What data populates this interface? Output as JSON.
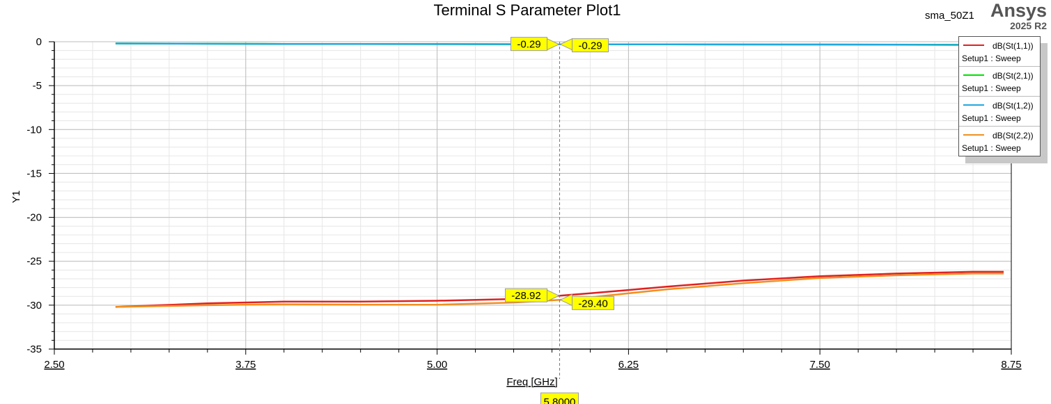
{
  "header": {
    "design_name": "sma_50Z1",
    "brand": "Ansys",
    "version": "2025 R2"
  },
  "chart_data": {
    "type": "line",
    "title": "Terminal S Parameter Plot1",
    "xlabel": "Freq [GHz]",
    "ylabel": "Y1",
    "xlim": [
      2.5,
      8.75
    ],
    "ylim": [
      -35,
      0
    ],
    "x_ticks": [
      "2.50",
      "3.75",
      "5.00",
      "6.25",
      "7.50",
      "8.75"
    ],
    "y_ticks": [
      "0",
      "-5",
      "-10",
      "-15",
      "-20",
      "-25",
      "-30",
      "-35"
    ],
    "grid": true,
    "legend_position": "top-right",
    "series": [
      {
        "name": "dB(St(1,1))",
        "setup": "Setup1 : Sweep",
        "color": "#e02020",
        "x": [
          2.9,
          3.5,
          4.0,
          4.5,
          5.0,
          5.5,
          5.8,
          6.0,
          6.5,
          7.0,
          7.5,
          8.0,
          8.5,
          8.7
        ],
        "y": [
          -30.2,
          -29.8,
          -29.6,
          -29.6,
          -29.5,
          -29.3,
          -28.92,
          -28.65,
          -27.9,
          -27.2,
          -26.7,
          -26.4,
          -26.2,
          -26.2
        ]
      },
      {
        "name": "dB(St(2,1))",
        "setup": "Setup1 : Sweep",
        "color": "#00e000",
        "x": [
          2.9,
          4.0,
          5.0,
          5.8,
          6.5,
          7.5,
          8.7
        ],
        "y": [
          -0.2,
          -0.25,
          -0.27,
          -0.29,
          -0.3,
          -0.32,
          -0.35
        ]
      },
      {
        "name": "dB(St(1,2))",
        "setup": "Setup1 : Sweep",
        "color": "#1fa8e0",
        "x": [
          2.9,
          4.0,
          5.0,
          5.8,
          6.5,
          7.5,
          8.7
        ],
        "y": [
          -0.2,
          -0.25,
          -0.27,
          -0.29,
          -0.3,
          -0.32,
          -0.38
        ]
      },
      {
        "name": "dB(St(2,2))",
        "setup": "Setup1 : Sweep",
        "color": "#f09020",
        "x": [
          2.9,
          3.5,
          4.0,
          4.5,
          5.0,
          5.5,
          5.8,
          6.0,
          6.5,
          7.0,
          7.5,
          8.0,
          8.5,
          8.7
        ],
        "y": [
          -30.2,
          -30.0,
          -29.9,
          -29.95,
          -29.95,
          -29.7,
          -29.4,
          -29.1,
          -28.2,
          -27.5,
          -26.9,
          -26.6,
          -26.4,
          -26.4
        ]
      }
    ],
    "marker": {
      "x_label": "5.8000",
      "x": 5.8,
      "values": [
        {
          "label": "-0.29",
          "y": -0.29,
          "side": "left"
        },
        {
          "label": "-0.29",
          "y": -0.29,
          "side": "right"
        },
        {
          "label": "-28.92",
          "y": -28.92,
          "side": "left"
        },
        {
          "label": "-29.40",
          "y": -29.4,
          "side": "right"
        }
      ]
    }
  }
}
